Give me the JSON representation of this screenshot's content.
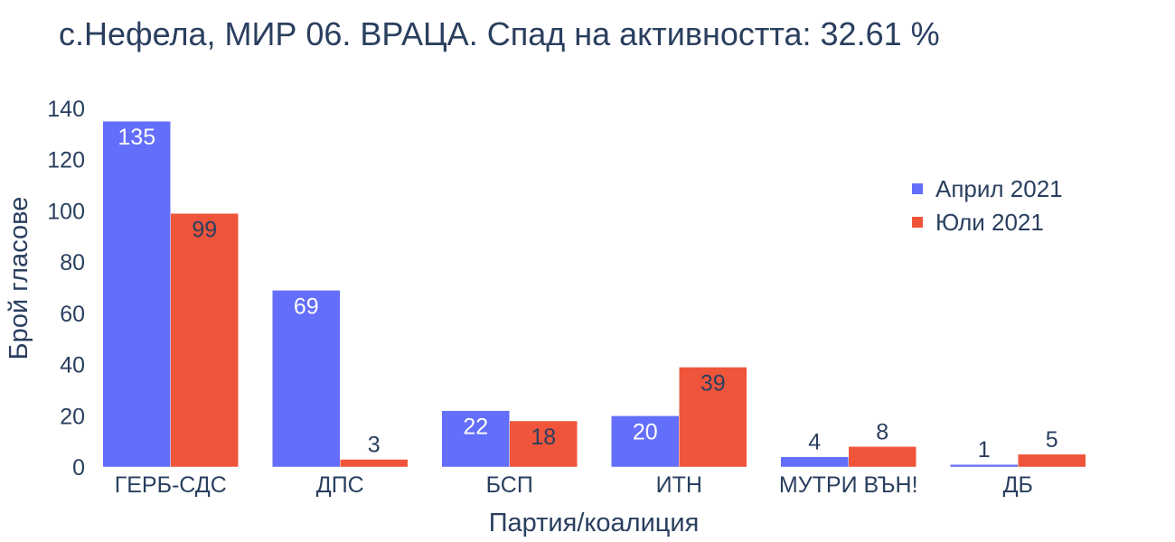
{
  "chart_data": {
    "type": "bar",
    "title": "с.Нефела, МИР 06. ВРАЦА. Спад на активността: 32.61 %",
    "xlabel": "Партия/коалиция",
    "ylabel": "Брой гласове",
    "categories": [
      "ГЕРБ-СДС",
      "ДПС",
      "БСП",
      "ИТН",
      "МУТРИ ВЪН!",
      "ДБ"
    ],
    "series": [
      {
        "name": "Април 2021",
        "color": "#636efa",
        "values": [
          135,
          69,
          22,
          20,
          4,
          1
        ]
      },
      {
        "name": "Юли 2021",
        "color": "#ef553b",
        "values": [
          99,
          3,
          18,
          39,
          8,
          5
        ]
      }
    ],
    "ylim": [
      0,
      140
    ],
    "yticks": [
      0,
      20,
      40,
      60,
      80,
      100,
      120,
      140
    ],
    "grid": false,
    "legend_position": "top-right"
  }
}
